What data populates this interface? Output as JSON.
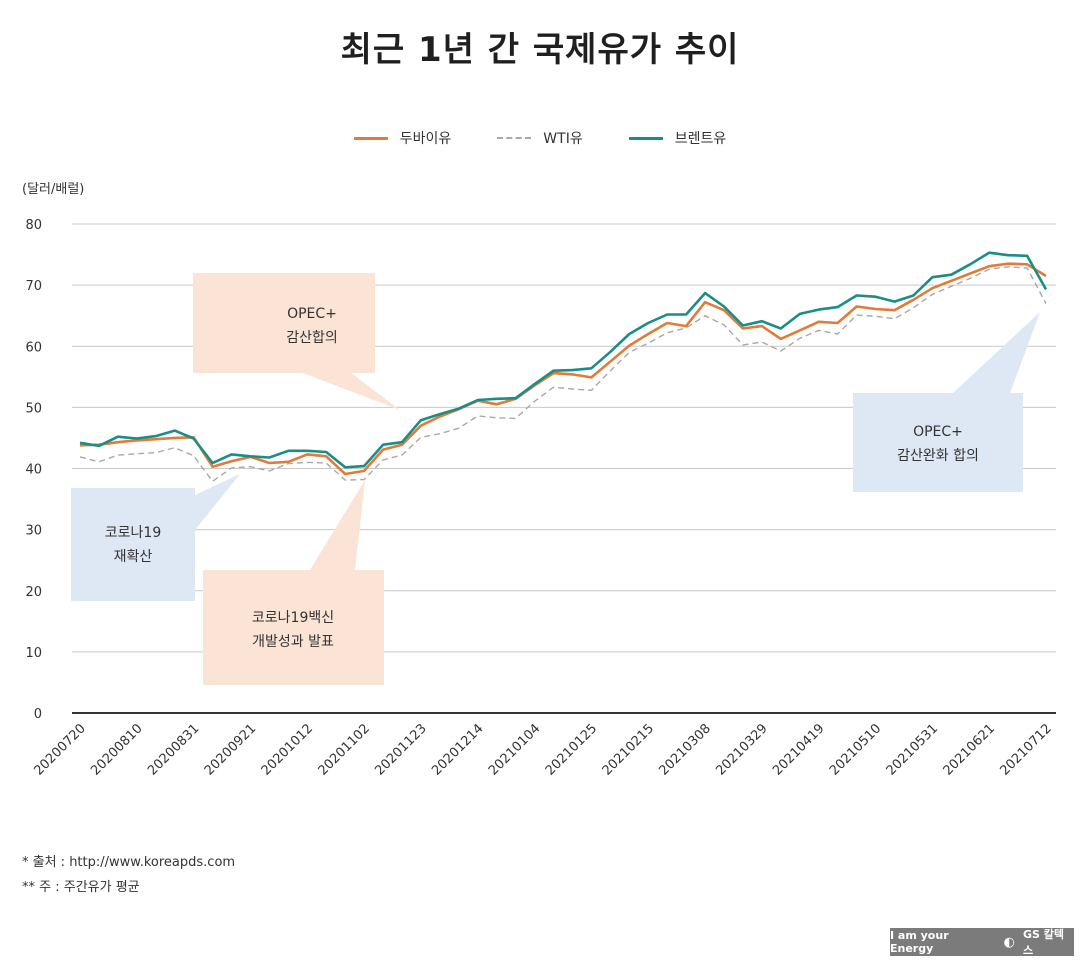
{
  "title": "최근 1년 간 국제유가 추이",
  "unit_label": "(달러/배럴)",
  "legend": [
    {
      "label": "두바이유",
      "color": "#E07B39",
      "style": "solid"
    },
    {
      "label": "WTI유",
      "color": "#A8A8A8",
      "style": "dashed"
    },
    {
      "label": "브렌트유",
      "color": "#1A8E86",
      "style": "solid"
    }
  ],
  "footnotes": {
    "source": "* 출처 : http://www.koreapds.com",
    "note": "** 주 : 주간유가 평균"
  },
  "badge": {
    "slogan": "I am your Energy",
    "brand": "GS 칼텍스"
  },
  "callouts": [
    {
      "lines": [
        "OPEC+",
        "감산합의"
      ],
      "color": "#FBE3D6"
    },
    {
      "lines": [
        "코로나19",
        "재확산"
      ],
      "color": "#DDE8F4"
    },
    {
      "lines": [
        "코로나19백신",
        "개발성과 발표"
      ],
      "color": "#FBE3D6"
    },
    {
      "lines": [
        "OPEC+",
        "감산완화 합의"
      ],
      "color": "#DDE8F4"
    }
  ],
  "chart_data": {
    "type": "line",
    "title": "최근 1년 간 국제유가 추이",
    "ylabel": "(달러/배럴)",
    "ylim": [
      0,
      80
    ],
    "yticks": [
      0,
      10,
      20,
      30,
      40,
      50,
      60,
      70,
      80
    ],
    "grid": true,
    "legend_position": "top-center",
    "x_ticks": [
      "20200720",
      "20200810",
      "20200831",
      "20200921",
      "20201012",
      "20201102",
      "20201123",
      "20201214",
      "20210104",
      "20210125",
      "20210215",
      "20210308",
      "20210329",
      "20210419",
      "20210510",
      "20210531",
      "20210621",
      "20210712"
    ],
    "x": [
      "20200720",
      "20200727",
      "20200803",
      "20200810",
      "20200817",
      "20200824",
      "20200831",
      "20200907",
      "20200914",
      "20200921",
      "20200928",
      "20201005",
      "20201012",
      "20201019",
      "20201026",
      "20201102",
      "20201109",
      "20201116",
      "20201123",
      "20201130",
      "20201207",
      "20201214",
      "20201221",
      "20201228",
      "20210104",
      "20210111",
      "20210118",
      "20210125",
      "20210201",
      "20210208",
      "20210215",
      "20210222",
      "20210301",
      "20210308",
      "20210315",
      "20210322",
      "20210329",
      "20210405",
      "20210412",
      "20210419",
      "20210426",
      "20210503",
      "20210510",
      "20210517",
      "20210524",
      "20210531",
      "20210607",
      "20210614",
      "20210621",
      "20210628",
      "20210705",
      "20210712"
    ],
    "series": [
      {
        "name": "두바이유",
        "color": "#E07B39",
        "dash": false,
        "values": [
          43.8,
          43.9,
          44.3,
          44.6,
          44.8,
          45.0,
          45.1,
          40.3,
          41.2,
          41.9,
          40.9,
          41.1,
          42.3,
          42.0,
          39.1,
          39.6,
          43.1,
          43.9,
          47.0,
          48.5,
          49.7,
          51.1,
          50.5,
          51.4,
          53.6,
          55.6,
          55.4,
          54.9,
          57.5,
          60.1,
          62.0,
          63.8,
          63.3,
          67.2,
          65.9,
          62.9,
          63.3,
          61.2,
          62.6,
          64.0,
          63.8,
          66.5,
          66.1,
          65.9,
          67.6,
          69.5,
          70.7,
          71.9,
          73.1,
          73.5,
          73.4,
          71.5
        ]
      },
      {
        "name": "WTI유",
        "color": "#A8A8A8",
        "dash": true,
        "values": [
          41.9,
          41.1,
          42.2,
          42.4,
          42.6,
          43.4,
          42.1,
          37.9,
          40.1,
          40.3,
          39.6,
          40.8,
          41.0,
          40.9,
          38.1,
          38.2,
          41.4,
          42.2,
          45.1,
          45.7,
          46.6,
          48.6,
          48.3,
          48.2,
          51.0,
          53.3,
          53.0,
          52.8,
          56.0,
          59.0,
          60.5,
          62.2,
          63.0,
          65.0,
          63.5,
          60.2,
          60.7,
          59.2,
          61.3,
          62.6,
          62.0,
          65.1,
          64.9,
          64.5,
          66.3,
          68.5,
          69.8,
          71.1,
          72.6,
          73.0,
          72.8,
          67.0
        ]
      },
      {
        "name": "브렌트유",
        "color": "#1A8E86",
        "dash": false,
        "values": [
          44.2,
          43.7,
          45.2,
          44.9,
          45.3,
          46.2,
          44.9,
          40.9,
          42.3,
          42.0,
          41.8,
          42.9,
          42.9,
          42.7,
          40.2,
          40.4,
          43.9,
          44.3,
          47.9,
          48.9,
          49.8,
          51.2,
          51.4,
          51.5,
          53.8,
          56.0,
          56.1,
          56.4,
          59.1,
          62.0,
          63.8,
          65.2,
          65.2,
          68.7,
          66.5,
          63.4,
          64.1,
          62.9,
          65.3,
          66.0,
          66.4,
          68.3,
          68.1,
          67.3,
          68.3,
          71.3,
          71.7,
          73.4,
          75.3,
          74.9,
          74.8,
          69.3
        ]
      }
    ]
  }
}
